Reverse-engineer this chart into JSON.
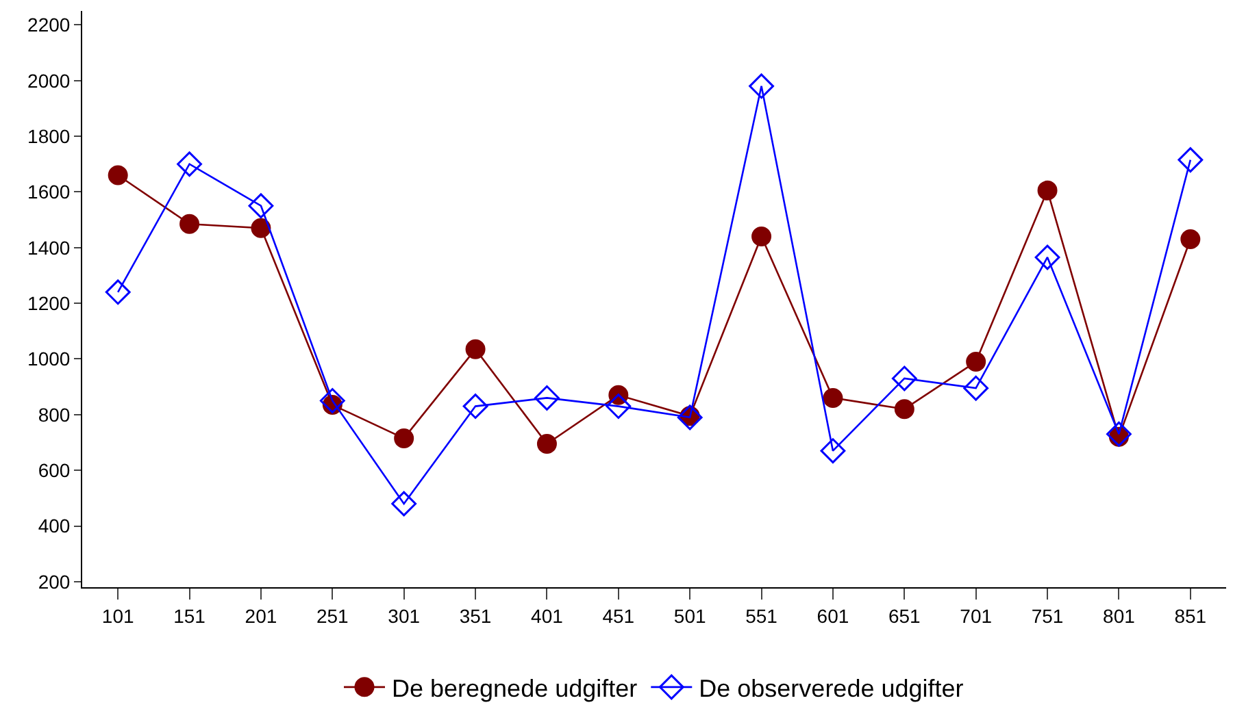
{
  "chart_data": {
    "type": "line",
    "categories": [
      "101",
      "151",
      "201",
      "251",
      "301",
      "351",
      "401",
      "451",
      "501",
      "551",
      "601",
      "651",
      "701",
      "751",
      "801",
      "851"
    ],
    "series": [
      {
        "name": "De beregnede udgifter",
        "color": "#800000",
        "marker": "circle",
        "values": [
          1660,
          1485,
          1470,
          835,
          715,
          1035,
          695,
          870,
          795,
          1440,
          860,
          820,
          990,
          1605,
          720,
          1430
        ]
      },
      {
        "name": "De observerede udgifter",
        "color": "#0000ff",
        "marker": "diamond",
        "values": [
          1240,
          1700,
          1550,
          850,
          480,
          830,
          860,
          830,
          790,
          1980,
          670,
          930,
          895,
          1365,
          730,
          1715
        ]
      }
    ],
    "ylim": [
      180,
      2250
    ],
    "yticks": [
      200,
      400,
      600,
      800,
      1000,
      1200,
      1400,
      1600,
      1800,
      2000,
      2200
    ],
    "legend": "bottom",
    "line_style": "solid"
  }
}
